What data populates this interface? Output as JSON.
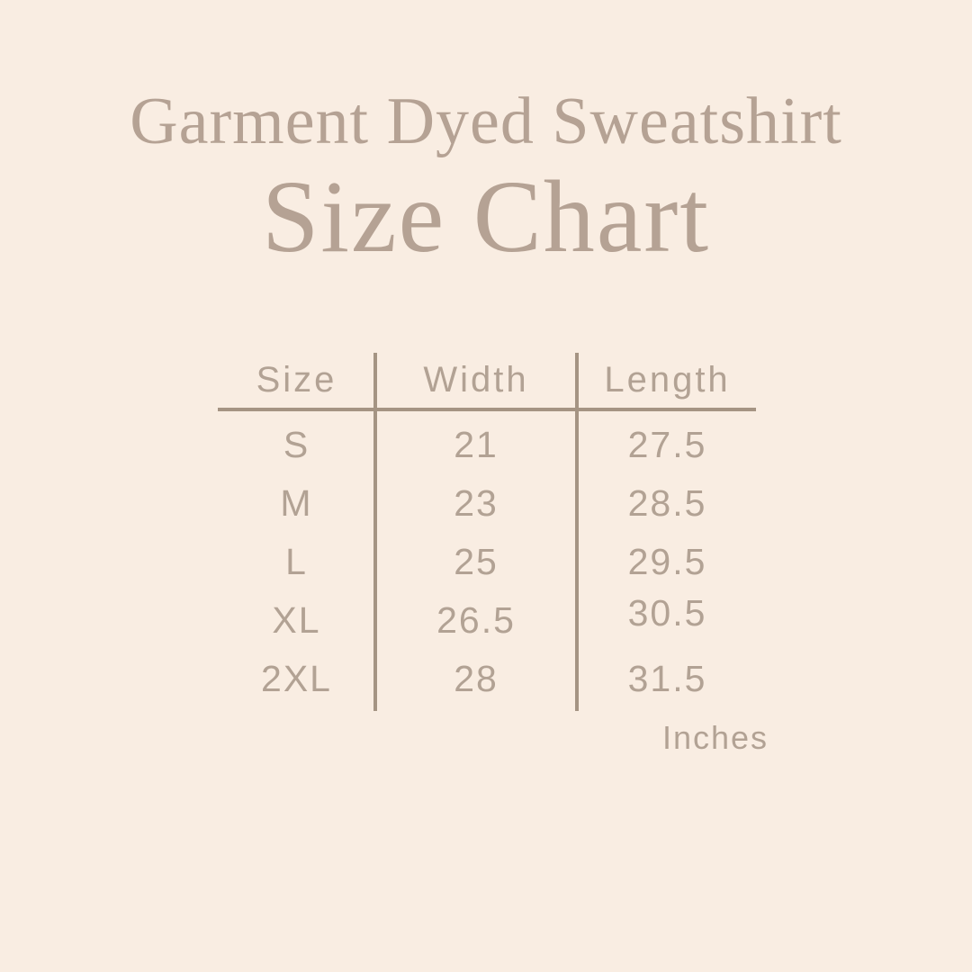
{
  "page": {
    "background_color": "#f9ede2",
    "text_color": "#b2a294",
    "line_color": "#a59483"
  },
  "titles": {
    "subtitle": "Garment Dyed Sweatshirt",
    "title": "Size Chart"
  },
  "size_table": {
    "columns": [
      "Size",
      "Width",
      "Length"
    ],
    "rows": [
      {
        "size": "S",
        "width": "21",
        "length": "27.5"
      },
      {
        "size": "M",
        "width": "23",
        "length": "28.5"
      },
      {
        "size": "L",
        "width": "25",
        "length": "29.5"
      },
      {
        "size": "XL",
        "width": "26.5",
        "length": "30.5"
      },
      {
        "size": "2XL",
        "width": "28",
        "length": "31.5"
      }
    ],
    "unit_label": "Inches"
  },
  "chart_data": {
    "type": "table",
    "title": "Garment Dyed Sweatshirt Size Chart",
    "columns": [
      "Size",
      "Width",
      "Length"
    ],
    "unit": "Inches",
    "rows": [
      [
        "S",
        21,
        27.5
      ],
      [
        "M",
        23,
        28.5
      ],
      [
        "L",
        25,
        29.5
      ],
      [
        "XL",
        26.5,
        30.5
      ],
      [
        "2XL",
        28,
        31.5
      ]
    ]
  }
}
